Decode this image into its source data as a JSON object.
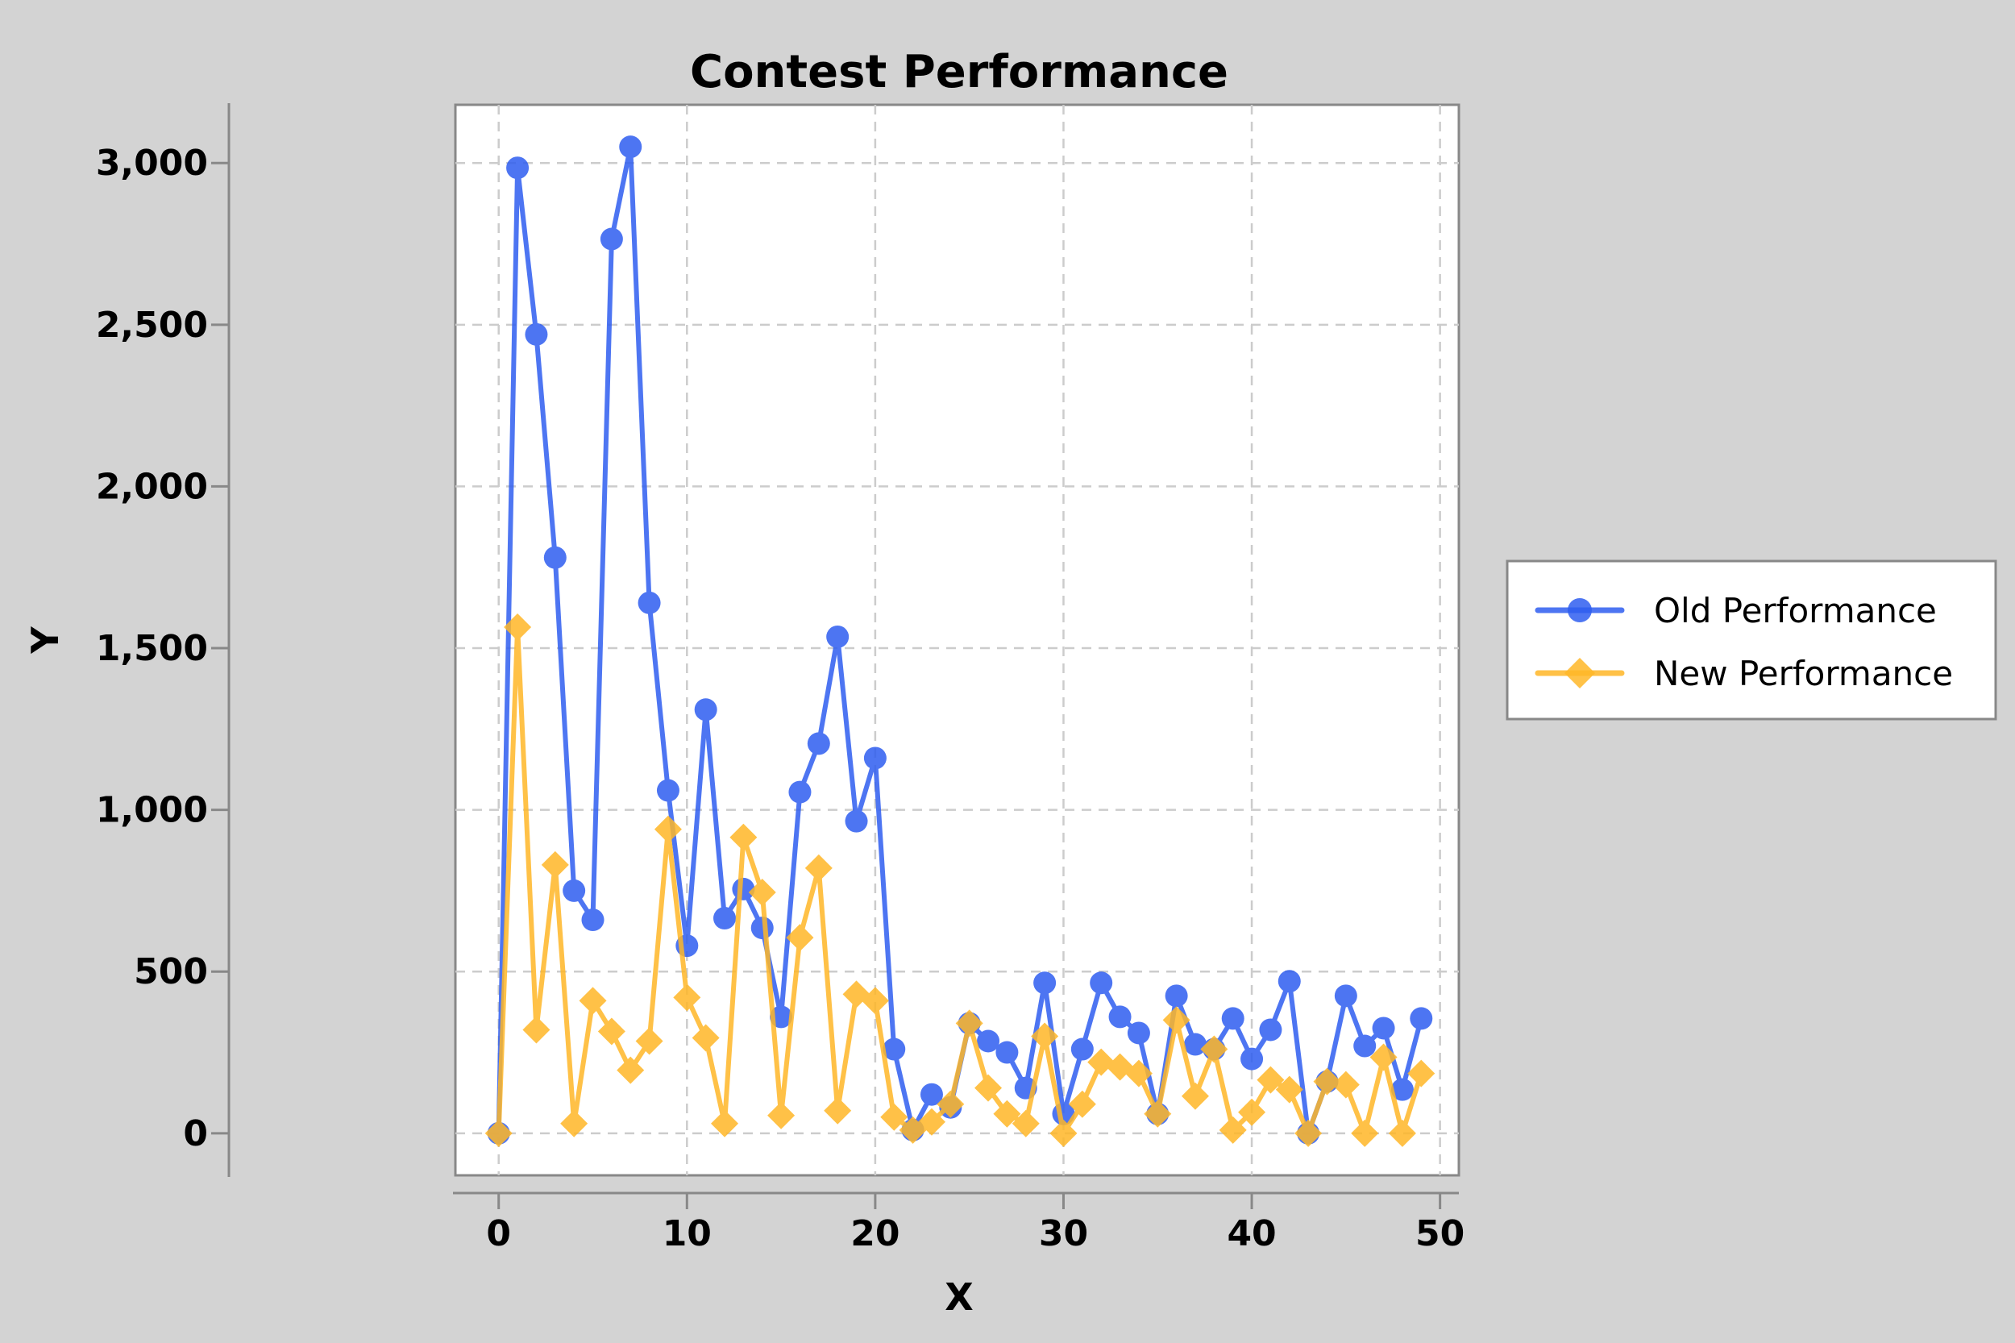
{
  "chart_data": {
    "type": "line",
    "title": "Contest Performance",
    "xlabel": "X",
    "ylabel": "Y",
    "xlim": [
      -2.3,
      51
    ],
    "ylim": [
      -130,
      3180
    ],
    "xticks": [
      0,
      10,
      20,
      30,
      40,
      50
    ],
    "yticks": [
      0,
      500,
      1000,
      1500,
      2000,
      2500,
      3000
    ],
    "ytick_labels": [
      "0",
      "500",
      "1,000",
      "1,500",
      "2,000",
      "2,500",
      "3,000"
    ],
    "grid": true,
    "legend_position": "right",
    "x": [
      0,
      1,
      2,
      3,
      4,
      5,
      6,
      7,
      8,
      9,
      10,
      11,
      12,
      13,
      14,
      15,
      16,
      17,
      18,
      19,
      20,
      21,
      22,
      23,
      24,
      25,
      26,
      27,
      28,
      29,
      30,
      31,
      32,
      33,
      34,
      35,
      36,
      37,
      38,
      39,
      40,
      41,
      42,
      43,
      44,
      45,
      46,
      47,
      48,
      49
    ],
    "series": [
      {
        "name": "Old Performance",
        "color": "#2f5ef0",
        "marker": "circle",
        "values": [
          0,
          2985,
          2470,
          1780,
          750,
          660,
          2765,
          3050,
          1640,
          1060,
          580,
          1310,
          665,
          755,
          635,
          360,
          1055,
          1205,
          1535,
          965,
          1160,
          260,
          10,
          120,
          80,
          340,
          285,
          250,
          140,
          465,
          60,
          260,
          465,
          360,
          310,
          60,
          425,
          275,
          260,
          355,
          230,
          320,
          470,
          0,
          160,
          425,
          270,
          325,
          135,
          355
        ]
      },
      {
        "name": "New Performance",
        "color": "#ffb728",
        "marker": "diamond",
        "values": [
          0,
          1565,
          320,
          830,
          30,
          410,
          315,
          195,
          285,
          940,
          420,
          295,
          30,
          915,
          745,
          55,
          605,
          820,
          70,
          430,
          410,
          50,
          10,
          35,
          90,
          340,
          140,
          60,
          30,
          300,
          0,
          90,
          220,
          205,
          185,
          60,
          350,
          115,
          260,
          10,
          65,
          165,
          135,
          0,
          160,
          150,
          0,
          235,
          0,
          185
        ]
      }
    ]
  }
}
